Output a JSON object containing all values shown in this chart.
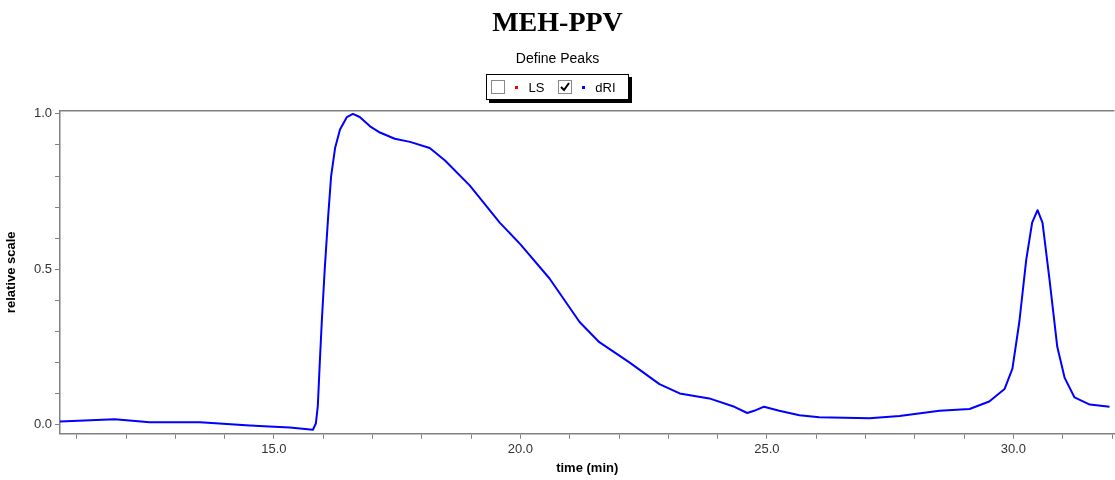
{
  "chart_data": {
    "type": "line",
    "title": "MEH-PPV",
    "subtitle": "Define Peaks",
    "xlabel": "time (min)",
    "ylabel": "relative scale",
    "legend": "top",
    "grid": false,
    "marker": "none",
    "line_style": "solid",
    "xlim": [
      10.66,
      32.05
    ],
    "ylim": [
      -0.03,
      1.01
    ],
    "xticks": [
      {
        "value": 11,
        "label": null
      },
      {
        "value": 12,
        "label": null
      },
      {
        "value": 13,
        "label": null
      },
      {
        "value": 14,
        "label": null
      },
      {
        "value": 15,
        "label": "15.0"
      },
      {
        "value": 16,
        "label": null
      },
      {
        "value": 17,
        "label": null
      },
      {
        "value": 18,
        "label": null
      },
      {
        "value": 19,
        "label": null
      },
      {
        "value": 20,
        "label": "20.0"
      },
      {
        "value": 21,
        "label": null
      },
      {
        "value": 22,
        "label": null
      },
      {
        "value": 23,
        "label": null
      },
      {
        "value": 24,
        "label": null
      },
      {
        "value": 25,
        "label": "25.0"
      },
      {
        "value": 26,
        "label": null
      },
      {
        "value": 27,
        "label": null
      },
      {
        "value": 28,
        "label": null
      },
      {
        "value": 29,
        "label": null
      },
      {
        "value": 30,
        "label": "30.0"
      },
      {
        "value": 31,
        "label": null
      },
      {
        "value": 32,
        "label": null
      }
    ],
    "yticks": [
      {
        "value": 0,
        "label": "0.0"
      },
      {
        "value": 0.1,
        "label": null
      },
      {
        "value": 0.2,
        "label": null
      },
      {
        "value": 0.3,
        "label": null
      },
      {
        "value": 0.4,
        "label": null
      },
      {
        "value": 0.5,
        "label": "0.5"
      },
      {
        "value": 0.6,
        "label": null
      },
      {
        "value": 0.7,
        "label": null
      },
      {
        "value": 0.8,
        "label": null
      },
      {
        "value": 0.9,
        "label": null
      },
      {
        "value": 1.0,
        "label": "1.0"
      }
    ],
    "series": [
      {
        "name": "LS",
        "color": "#ff0000"
      },
      {
        "name": "dRI",
        "color": "#0000ff",
        "x": [
          10.66,
          11.77,
          12.48,
          13.5,
          14.51,
          15.32,
          15.79,
          15.85,
          15.89,
          15.93,
          15.97,
          16.03,
          16.1,
          16.16,
          16.24,
          16.34,
          16.48,
          16.6,
          16.74,
          16.95,
          17.15,
          17.45,
          17.76,
          18.16,
          18.47,
          18.97,
          19.58,
          20.0,
          20.59,
          21.2,
          21.6,
          22.21,
          22.82,
          23.23,
          23.83,
          24.34,
          24.6,
          24.74,
          24.94,
          25.25,
          25.66,
          26.06,
          27.08,
          27.69,
          28.5,
          29.11,
          29.51,
          29.82,
          29.98,
          30.12,
          30.26,
          30.38,
          30.49,
          30.59,
          30.73,
          30.89,
          31.04,
          31.24,
          31.55,
          31.95
        ],
        "values": [
          0.01,
          0.017,
          0.007,
          0.007,
          -0.003,
          -0.01,
          -0.017,
          0.003,
          0.06,
          0.2,
          0.33,
          0.5,
          0.67,
          0.8,
          0.89,
          0.95,
          0.99,
          1.0,
          0.99,
          0.96,
          0.94,
          0.92,
          0.91,
          0.89,
          0.85,
          0.77,
          0.65,
          0.58,
          0.47,
          0.33,
          0.265,
          0.2,
          0.13,
          0.1,
          0.084,
          0.057,
          0.037,
          0.044,
          0.057,
          0.044,
          0.03,
          0.023,
          0.02,
          0.027,
          0.044,
          0.05,
          0.074,
          0.114,
          0.18,
          0.33,
          0.53,
          0.65,
          0.69,
          0.65,
          0.47,
          0.25,
          0.15,
          0.087,
          0.064,
          0.057
        ]
      }
    ]
  }
}
